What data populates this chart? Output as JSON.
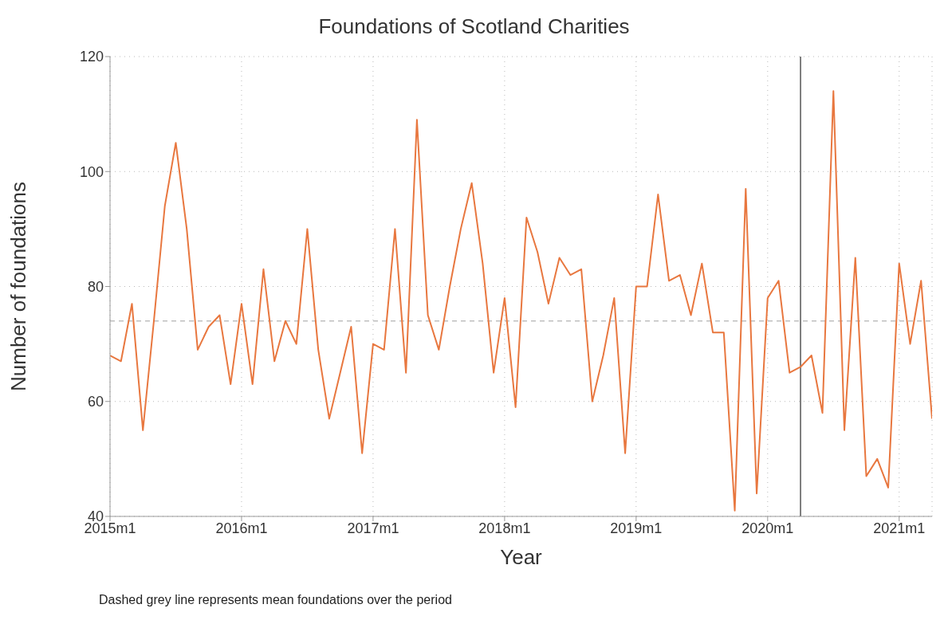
{
  "chart_data": {
    "type": "line",
    "title": "Foundations of Scotland Charities",
    "xlabel": "Year",
    "ylabel": "Number of foundations",
    "annotations": [
      "Dashed grey line represents mean foundations over the period"
    ],
    "x": [
      "2015-01",
      "2015-02",
      "2015-03",
      "2015-04",
      "2015-05",
      "2015-06",
      "2015-07",
      "2015-08",
      "2015-09",
      "2015-10",
      "2015-11",
      "2015-12",
      "2016-01",
      "2016-02",
      "2016-03",
      "2016-04",
      "2016-05",
      "2016-06",
      "2016-07",
      "2016-08",
      "2016-09",
      "2016-10",
      "2016-11",
      "2016-12",
      "2017-01",
      "2017-02",
      "2017-03",
      "2017-04",
      "2017-05",
      "2017-06",
      "2017-07",
      "2017-08",
      "2017-09",
      "2017-10",
      "2017-11",
      "2017-12",
      "2018-01",
      "2018-02",
      "2018-03",
      "2018-04",
      "2018-05",
      "2018-06",
      "2018-07",
      "2018-08",
      "2018-09",
      "2018-10",
      "2018-11",
      "2018-12",
      "2019-01",
      "2019-02",
      "2019-03",
      "2019-04",
      "2019-05",
      "2019-06",
      "2019-07",
      "2019-08",
      "2019-09",
      "2019-10",
      "2019-11",
      "2019-12",
      "2020-01",
      "2020-02",
      "2020-03",
      "2020-04",
      "2020-05",
      "2020-06",
      "2020-07",
      "2020-08",
      "2020-09",
      "2020-10",
      "2020-11",
      "2020-12",
      "2021-01",
      "2021-02",
      "2021-03",
      "2021-04"
    ],
    "series": [
      {
        "color": "#e8773f",
        "values": [
          68,
          67,
          77,
          55,
          74,
          94,
          105,
          90,
          69,
          73,
          75,
          63,
          77,
          63,
          83,
          67,
          74,
          70,
          90,
          69,
          57,
          65,
          73,
          51,
          70,
          69,
          90,
          65,
          109,
          75,
          69,
          80,
          90,
          98,
          84,
          65,
          78,
          59,
          92,
          86,
          77,
          85,
          82,
          83,
          60,
          68,
          78,
          51,
          80,
          80,
          96,
          81,
          82,
          75,
          84,
          72,
          72,
          41,
          97,
          44,
          78,
          81,
          65,
          66,
          68,
          58,
          114,
          55,
          85,
          47,
          50,
          45,
          84,
          70,
          81,
          57
        ]
      }
    ],
    "xlim": [
      "2015-01",
      "2021-04"
    ],
    "xticks": [
      {
        "value": "2015-01",
        "label": "2015m1"
      },
      {
        "value": "2016-01",
        "label": "2016m1"
      },
      {
        "value": "2017-01",
        "label": "2017m1"
      },
      {
        "value": "2018-01",
        "label": "2018m1"
      },
      {
        "value": "2019-01",
        "label": "2019m1"
      },
      {
        "value": "2020-01",
        "label": "2020m1"
      },
      {
        "value": "2021-01",
        "label": "2021m1"
      }
    ],
    "ylim": [
      40,
      120
    ],
    "yticks": [
      40,
      60,
      80,
      100,
      120
    ],
    "grid": true,
    "legend": false,
    "marker": "none",
    "line_style": "solid",
    "ref_lines": [
      {
        "axis": "y",
        "value": 74,
        "color": "#bfbfbf",
        "line_style": "dashed"
      },
      {
        "axis": "x",
        "value": "2020-04",
        "color": "#555555",
        "line_style": "solid"
      }
    ]
  }
}
